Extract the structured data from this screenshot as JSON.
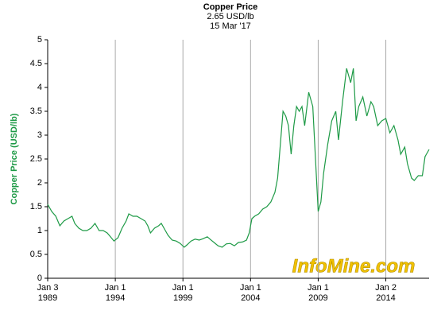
{
  "chart_data": {
    "type": "line",
    "title": "Copper Price",
    "subtitle": "2.65 USD/lb",
    "date": "15 Mar '17",
    "y_label": "Copper Price (USD/lb)",
    "watermark": "InfoMine.com",
    "color": "#1e9a46",
    "grid": true,
    "xlim": [
      1989,
      2017.2
    ],
    "ylim": [
      0,
      5
    ],
    "yticks": [
      0,
      0.5,
      1,
      1.5,
      2,
      2.5,
      3,
      3.5,
      4,
      4.5,
      5
    ],
    "xticks": [
      {
        "value": 1989,
        "label": "Jan 3\n1989"
      },
      {
        "value": 1994,
        "label": "Jan 1\n1994"
      },
      {
        "value": 1999,
        "label": "Jan 1\n1999"
      },
      {
        "value": 2004,
        "label": "Jan 1\n2004"
      },
      {
        "value": 2009,
        "label": "Jan 1\n2009"
      },
      {
        "value": 2014,
        "label": "Jan 2\n2014"
      }
    ],
    "x": [
      1989.0,
      1989.3,
      1989.6,
      1989.9,
      1990.2,
      1990.5,
      1990.8,
      1991.0,
      1991.3,
      1991.6,
      1991.9,
      1992.2,
      1992.5,
      1992.8,
      1993.1,
      1993.4,
      1993.7,
      1993.9,
      1994.2,
      1994.5,
      1994.8,
      1995.0,
      1995.3,
      1995.6,
      1995.9,
      1996.2,
      1996.4,
      1996.6,
      1996.9,
      1997.2,
      1997.4,
      1997.7,
      1997.9,
      1998.2,
      1998.5,
      1998.8,
      1999.1,
      1999.3,
      1999.6,
      1999.9,
      2000.2,
      2000.5,
      2000.8,
      2001.0,
      2001.3,
      2001.6,
      2001.9,
      2002.2,
      2002.5,
      2002.8,
      2003.1,
      2003.4,
      2003.7,
      2003.9,
      2004.1,
      2004.3,
      2004.6,
      2004.9,
      2005.2,
      2005.5,
      2005.8,
      2006.0,
      2006.2,
      2006.4,
      2006.6,
      2006.8,
      2007.0,
      2007.2,
      2007.4,
      2007.6,
      2007.8,
      2008.0,
      2008.3,
      2008.6,
      2008.8,
      2009.0,
      2009.2,
      2009.4,
      2009.7,
      2010.0,
      2010.3,
      2010.5,
      2010.8,
      2011.1,
      2011.4,
      2011.6,
      2011.8,
      2012.0,
      2012.3,
      2012.6,
      2012.9,
      2013.1,
      2013.4,
      2013.7,
      2014.0,
      2014.3,
      2014.6,
      2014.9,
      2015.1,
      2015.4,
      2015.6,
      2015.9,
      2016.1,
      2016.4,
      2016.7,
      2016.9,
      2017.0,
      2017.2
    ],
    "values": [
      1.55,
      1.4,
      1.3,
      1.1,
      1.2,
      1.25,
      1.3,
      1.15,
      1.05,
      1.0,
      1.0,
      1.05,
      1.15,
      1.0,
      1.0,
      0.95,
      0.85,
      0.78,
      0.85,
      1.05,
      1.2,
      1.35,
      1.3,
      1.3,
      1.25,
      1.2,
      1.1,
      0.95,
      1.05,
      1.1,
      1.15,
      1.0,
      0.9,
      0.8,
      0.78,
      0.73,
      0.65,
      0.7,
      0.78,
      0.82,
      0.8,
      0.83,
      0.87,
      0.82,
      0.75,
      0.68,
      0.65,
      0.72,
      0.73,
      0.68,
      0.75,
      0.76,
      0.8,
      0.95,
      1.25,
      1.3,
      1.35,
      1.45,
      1.5,
      1.6,
      1.8,
      2.1,
      2.8,
      3.5,
      3.4,
      3.2,
      2.6,
      3.2,
      3.6,
      3.5,
      3.6,
      3.2,
      3.9,
      3.6,
      2.5,
      1.4,
      1.6,
      2.2,
      2.8,
      3.3,
      3.5,
      2.9,
      3.7,
      4.4,
      4.1,
      4.4,
      3.3,
      3.6,
      3.8,
      3.4,
      3.7,
      3.6,
      3.2,
      3.3,
      3.35,
      3.05,
      3.2,
      2.9,
      2.6,
      2.75,
      2.4,
      2.1,
      2.05,
      2.15,
      2.15,
      2.55,
      2.6,
      2.7
    ]
  }
}
